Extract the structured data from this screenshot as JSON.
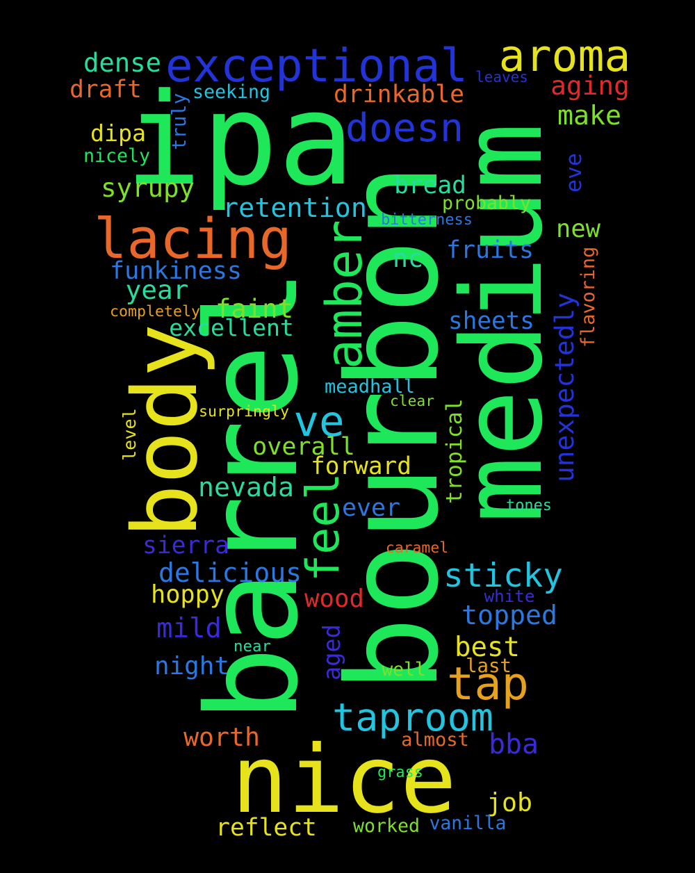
{
  "colors": {
    "background": "#000000",
    "green": "#1ee85a",
    "yellow": "#e6e31c",
    "blue": "#2233d8",
    "orange": "#e8682a",
    "cyan": "#22c4e0",
    "red": "#e02a2a",
    "lime": "#7ee02a",
    "amber": "#e6a21e",
    "teal": "#28dca0",
    "azure": "#2a78e0",
    "indigo": "#3a2ad8"
  },
  "words": [
    {
      "text": "ipa",
      "color": "green",
      "rot": 0
    },
    {
      "text": "medium",
      "color": "green",
      "rot": -90
    },
    {
      "text": "bourbon",
      "color": "green",
      "rot": -90
    },
    {
      "text": "barrel",
      "color": "green",
      "rot": -90
    },
    {
      "text": "nice",
      "color": "yellow",
      "rot": 0
    },
    {
      "text": "body",
      "color": "yellow",
      "rot": -90
    },
    {
      "text": "lacing",
      "color": "orange",
      "rot": 0
    },
    {
      "text": "exceptional",
      "color": "blue",
      "rot": 0
    },
    {
      "text": "aroma",
      "color": "yellow",
      "rot": 0
    },
    {
      "text": "amber",
      "color": "green",
      "rot": -90
    },
    {
      "text": "doesn",
      "color": "blue",
      "rot": 0
    },
    {
      "text": "feel",
      "color": "green",
      "rot": -90
    },
    {
      "text": "ve",
      "color": "cyan",
      "rot": 0
    },
    {
      "text": "taproom",
      "color": "cyan",
      "rot": 0
    },
    {
      "text": "tap",
      "color": "amber",
      "rot": 0
    },
    {
      "text": "sticky",
      "color": "cyan",
      "rot": 0
    },
    {
      "text": "retention",
      "color": "cyan",
      "rot": 0
    },
    {
      "text": "dense",
      "color": "teal",
      "rot": 0
    },
    {
      "text": "draft",
      "color": "orange",
      "rot": 0
    },
    {
      "text": "aging",
      "color": "red",
      "rot": 0
    },
    {
      "text": "drinkable",
      "color": "orange",
      "rot": 0
    },
    {
      "text": "seeking",
      "color": "cyan",
      "rot": 0
    },
    {
      "text": "leaves",
      "color": "blue",
      "rot": 0
    },
    {
      "text": "make",
      "color": "lime",
      "rot": 0
    },
    {
      "text": "truly",
      "color": "azure",
      "rot": -90
    },
    {
      "text": "dipa",
      "color": "yellow",
      "rot": 0
    },
    {
      "text": "nicely",
      "color": "green",
      "rot": 0
    },
    {
      "text": "syrupy",
      "color": "lime",
      "rot": 0
    },
    {
      "text": "bread",
      "color": "teal",
      "rot": 0
    },
    {
      "text": "probably",
      "color": "lime",
      "rot": 0
    },
    {
      "text": "eve",
      "color": "blue",
      "rot": -90
    },
    {
      "text": "bitterness",
      "color": "azure",
      "rot": 0
    },
    {
      "text": "new",
      "color": "lime",
      "rot": 0
    },
    {
      "text": "funkiness",
      "color": "azure",
      "rot": 0
    },
    {
      "text": "fruits",
      "color": "azure",
      "rot": 0
    },
    {
      "text": "nc",
      "color": "teal",
      "rot": 0
    },
    {
      "text": "flavoring",
      "color": "orange",
      "rot": -90
    },
    {
      "text": "year",
      "color": "teal",
      "rot": 0
    },
    {
      "text": "completely",
      "color": "amber",
      "rot": 0
    },
    {
      "text": "faint",
      "color": "lime",
      "rot": 0
    },
    {
      "text": "unexpectedly",
      "color": "blue",
      "rot": -90
    },
    {
      "text": "excellent",
      "color": "teal",
      "rot": 0
    },
    {
      "text": "sheets",
      "color": "azure",
      "rot": 0
    },
    {
      "text": "meadhall",
      "color": "cyan",
      "rot": 0
    },
    {
      "text": "clear",
      "color": "lime",
      "rot": 0
    },
    {
      "text": "surpringly",
      "color": "yellow",
      "rot": 0
    },
    {
      "text": "tropical",
      "color": "lime",
      "rot": -90
    },
    {
      "text": "level",
      "color": "yellow",
      "rot": -90
    },
    {
      "text": "overall",
      "color": "lime",
      "rot": 0
    },
    {
      "text": "forward",
      "color": "yellow",
      "rot": 0
    },
    {
      "text": "nevada",
      "color": "teal",
      "rot": 0
    },
    {
      "text": "ever",
      "color": "azure",
      "rot": 0
    },
    {
      "text": "tones",
      "color": "teal",
      "rot": 0
    },
    {
      "text": "sierra",
      "color": "indigo",
      "rot": 0
    },
    {
      "text": "caramel",
      "color": "orange",
      "rot": 0
    },
    {
      "text": "delicious",
      "color": "azure",
      "rot": 0
    },
    {
      "text": "hoppy",
      "color": "yellow",
      "rot": 0
    },
    {
      "text": "wood",
      "color": "red",
      "rot": 0
    },
    {
      "text": "white",
      "color": "indigo",
      "rot": 0
    },
    {
      "text": "topped",
      "color": "azure",
      "rot": 0
    },
    {
      "text": "mild",
      "color": "indigo",
      "rot": 0
    },
    {
      "text": "near",
      "color": "teal",
      "rot": 0
    },
    {
      "text": "aged",
      "color": "indigo",
      "rot": -90
    },
    {
      "text": "best",
      "color": "yellow",
      "rot": 0
    },
    {
      "text": "night",
      "color": "azure",
      "rot": 0
    },
    {
      "text": "well",
      "color": "lime",
      "rot": 0
    },
    {
      "text": "last",
      "color": "amber",
      "rot": 0
    },
    {
      "text": "worth",
      "color": "orange",
      "rot": 0
    },
    {
      "text": "almost",
      "color": "orange",
      "rot": 0
    },
    {
      "text": "bba",
      "color": "indigo",
      "rot": 0
    },
    {
      "text": "grass",
      "color": "green",
      "rot": 0
    },
    {
      "text": "job",
      "color": "yellow",
      "rot": 0
    },
    {
      "text": "reflect",
      "color": "yellow",
      "rot": 0
    },
    {
      "text": "worked",
      "color": "lime",
      "rot": 0
    },
    {
      "text": "vanilla",
      "color": "azure",
      "rot": 0
    }
  ]
}
